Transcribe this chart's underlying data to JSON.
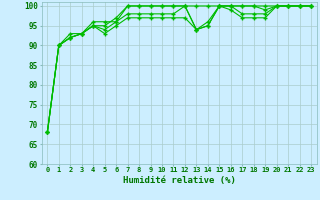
{
  "title": "",
  "xlabel": "Humidité relative (%)",
  "ylabel": "",
  "background_color": "#cceeff",
  "grid_color": "#aacccc",
  "line_color": "#00bb00",
  "marker_color": "#00bb00",
  "xlim": [
    -0.5,
    23.5
  ],
  "ylim": [
    60,
    101
  ],
  "yticks": [
    60,
    65,
    70,
    75,
    80,
    85,
    90,
    95,
    100
  ],
  "xticks": [
    0,
    1,
    2,
    3,
    4,
    5,
    6,
    7,
    8,
    9,
    10,
    11,
    12,
    13,
    14,
    15,
    16,
    17,
    18,
    19,
    20,
    21,
    22,
    23
  ],
  "series": [
    [
      68,
      90,
      93,
      93,
      96,
      96,
      96,
      100,
      100,
      100,
      100,
      100,
      100,
      100,
      100,
      100,
      100,
      100,
      100,
      100,
      100,
      100,
      100,
      100
    ],
    [
      68,
      90,
      92,
      93,
      95,
      95,
      97,
      100,
      100,
      100,
      100,
      100,
      100,
      94,
      96,
      100,
      100,
      100,
      100,
      99,
      100,
      100,
      100,
      100
    ],
    [
      68,
      90,
      92,
      93,
      95,
      94,
      96,
      98,
      98,
      98,
      98,
      98,
      100,
      94,
      95,
      100,
      100,
      98,
      98,
      98,
      100,
      100,
      100,
      100
    ],
    [
      68,
      90,
      92,
      93,
      95,
      93,
      95,
      97,
      97,
      97,
      97,
      97,
      97,
      94,
      95,
      100,
      99,
      97,
      97,
      97,
      100,
      100,
      100,
      100
    ]
  ]
}
